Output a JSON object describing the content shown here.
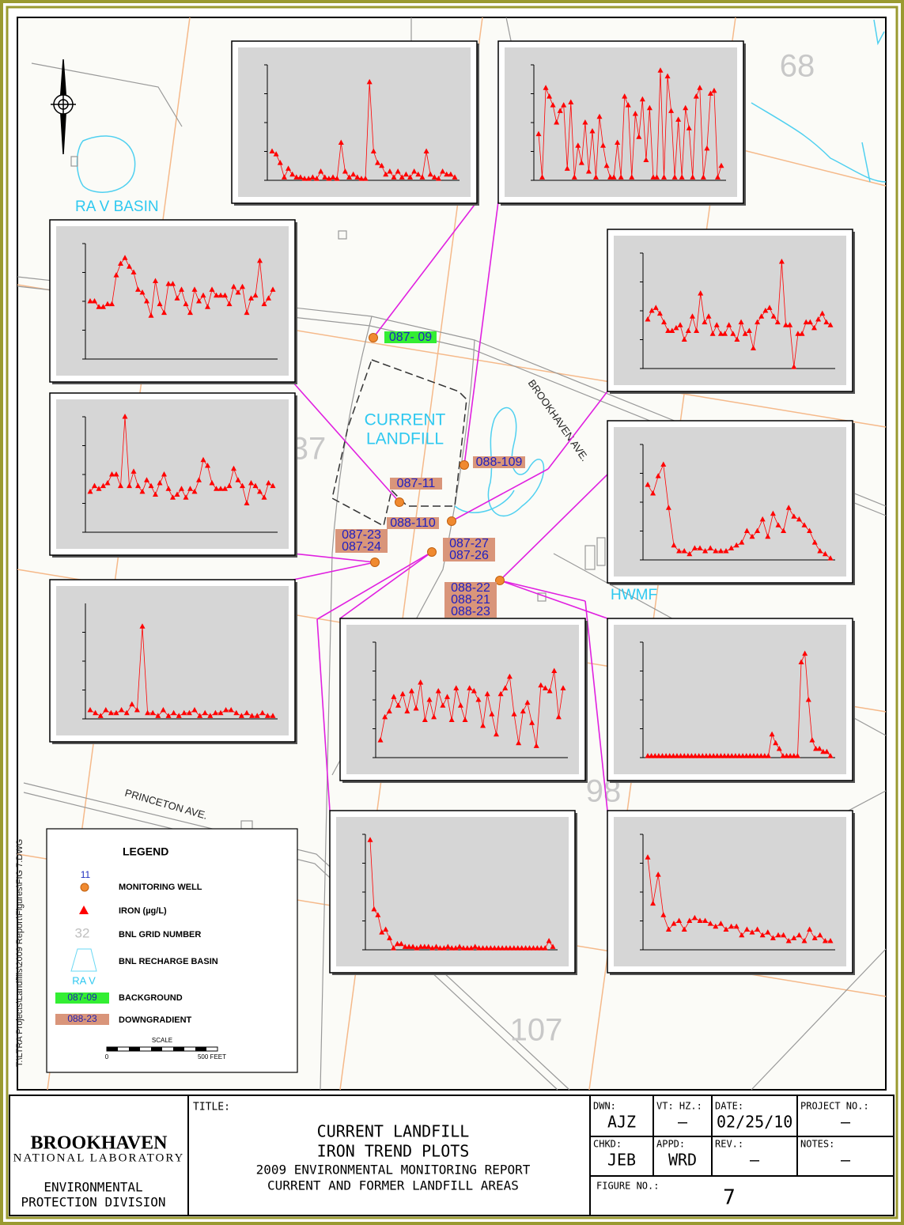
{
  "map": {
    "grid_numbers": [
      "68",
      "37",
      "98",
      "107"
    ],
    "ra_v_basin": "RA V BASIN",
    "landfill": [
      "CURRENT",
      "LANDFILL"
    ],
    "brookhaven_ave": "BROOKHAVEN AVE.",
    "princeton_ave": "PRINCETON AVE.",
    "hwmf": "HWMF",
    "file_path": "T:\\LTRA Projects\\Landfills\\2009 Report\\Figures\\FIG 7.DWG",
    "wells": [
      "087- 09",
      "088-109",
      "087-11",
      "088-110",
      "087-23",
      "087-24",
      "087-27",
      "087-26",
      "088-22",
      "088-21",
      "088-23"
    ]
  },
  "legend": {
    "title": "LEGEND",
    "well_number": "11",
    "monitoring_well": "MONITORING WELL",
    "iron": "IRON (µg/L)",
    "grid_number": "32",
    "bnl_grid_number": "BNL GRID NUMBER",
    "recharge_basin": "BNL RECHARGE BASIN",
    "basin_name": "RA V",
    "background_well": "087-09",
    "background": "BACKGROUND",
    "downgradient_well": "088-23",
    "downgradient": "DOWNGRADIENT",
    "scale": "SCALE",
    "scale_start": "0",
    "scale_end": "500 FEET"
  },
  "plots": [
    {
      "ylim": [
        0,
        4
      ],
      "yticks": [
        0,
        1,
        2,
        3,
        4
      ],
      "color": "#ff0000",
      "values": [
        1.0,
        0.9,
        0.6,
        0.1,
        0.4,
        0.2,
        0.1,
        0.1,
        0.05,
        0.05,
        0.1,
        0.05,
        0.3,
        0.1,
        0.05,
        0.1,
        0.05,
        1.3,
        0.3,
        0.1,
        0.2,
        0.1,
        0.05,
        0.05,
        3.4,
        1.0,
        0.6,
        0.5,
        0.2,
        0.3,
        0.1,
        0.3,
        0.1,
        0.2,
        0.1,
        0.3,
        0.2,
        0.1,
        1.0,
        0.2,
        0.1,
        0.05,
        0.3,
        0.2,
        0.2,
        0.1
      ]
    },
    {
      "ylim": [
        0,
        4
      ],
      "yticks": [
        0,
        1,
        2,
        3,
        4
      ],
      "color": "#ff0000",
      "values": [
        1.6,
        0.1,
        3.2,
        2.9,
        2.6,
        2.0,
        2.4,
        2.6,
        0.4,
        2.7,
        0.1,
        1.2,
        0.6,
        2.0,
        0.3,
        1.7,
        0.1,
        2.2,
        1.2,
        0.5,
        0.1,
        0.1,
        1.3,
        0.1,
        2.9,
        2.6,
        0.1,
        2.3,
        1.5,
        2.8,
        0.7,
        2.5,
        0.1,
        0.1,
        3.8,
        0.1,
        3.6,
        2.4,
        0.1,
        2.1,
        0.1,
        2.5,
        1.8,
        0.1,
        2.9,
        3.2,
        0.1,
        1.1,
        3.0,
        3.1,
        0.1,
        0.5
      ]
    },
    {
      "ylim": [
        0,
        4
      ],
      "yticks": [
        0,
        1,
        2,
        3,
        4
      ],
      "color": "#ff0000",
      "values": [
        2.0,
        2.0,
        1.8,
        1.8,
        1.9,
        1.9,
        2.9,
        3.3,
        3.5,
        3.2,
        3.0,
        2.4,
        2.3,
        2.0,
        1.5,
        2.7,
        1.9,
        1.6,
        2.6,
        2.6,
        2.1,
        2.4,
        1.9,
        1.6,
        2.4,
        2.0,
        2.2,
        1.8,
        2.4,
        2.2,
        2.2,
        2.2,
        1.9,
        2.5,
        2.3,
        2.5,
        1.6,
        2.1,
        2.2,
        3.4,
        1.9,
        2.1,
        2.4
      ]
    },
    {
      "ylim": [
        0,
        4
      ],
      "yticks": [
        0,
        1,
        2,
        3,
        4
      ],
      "color": "#ff0000",
      "values": [
        1.7,
        2.0,
        2.1,
        1.9,
        1.6,
        1.3,
        1.3,
        1.4,
        1.5,
        1.0,
        1.3,
        1.8,
        1.3,
        2.6,
        1.6,
        1.8,
        1.2,
        1.5,
        1.2,
        1.2,
        1.5,
        1.2,
        1.0,
        1.6,
        1.2,
        1.3,
        0.7,
        1.6,
        1.8,
        2.0,
        2.1,
        1.8,
        1.6,
        3.7,
        1.5,
        1.5,
        0.05,
        1.2,
        1.2,
        1.6,
        1.6,
        1.4,
        1.7,
        1.9,
        1.6,
        1.5
      ]
    },
    {
      "ylim": [
        0,
        4
      ],
      "yticks": [
        0,
        1,
        2,
        3,
        4
      ],
      "color": "#ff0000",
      "values": [
        1.4,
        1.6,
        1.5,
        1.6,
        1.7,
        2.0,
        2.0,
        1.6,
        4.0,
        1.6,
        2.1,
        1.6,
        1.4,
        1.8,
        1.6,
        1.3,
        1.7,
        2.0,
        1.5,
        1.2,
        1.3,
        1.5,
        1.2,
        1.5,
        1.4,
        1.8,
        2.5,
        2.3,
        1.7,
        1.5,
        1.5,
        1.5,
        1.6,
        2.2,
        1.8,
        1.6,
        1.0,
        1.7,
        1.6,
        1.4,
        1.2,
        1.7,
        1.6
      ]
    },
    {
      "ylim": [
        0,
        4
      ],
      "yticks": [
        0,
        1,
        2,
        3,
        4
      ],
      "color": "#ff0000",
      "values": [
        2.6,
        2.3,
        2.9,
        3.3,
        1.8,
        0.5,
        0.3,
        0.3,
        0.2,
        0.4,
        0.4,
        0.3,
        0.4,
        0.3,
        0.3,
        0.3,
        0.4,
        0.5,
        0.6,
        1.0,
        0.8,
        1.0,
        1.4,
        0.8,
        1.6,
        1.2,
        1.0,
        1.8,
        1.5,
        1.4,
        1.2,
        1.0,
        0.6,
        0.3,
        0.2,
        0.05
      ]
    },
    {
      "ylim": [
        0,
        4
      ],
      "yticks": [
        0,
        1,
        2,
        3
      ],
      "color": "#ff0000",
      "values": [
        0.3,
        0.2,
        0.1,
        0.3,
        0.2,
        0.2,
        0.3,
        0.2,
        0.5,
        0.3,
        3.2,
        0.2,
        0.2,
        0.1,
        0.3,
        0.1,
        0.2,
        0.1,
        0.2,
        0.2,
        0.3,
        0.1,
        0.2,
        0.1,
        0.2,
        0.2,
        0.3,
        0.3,
        0.2,
        0.1,
        0.2,
        0.1,
        0.1,
        0.2,
        0.1,
        0.1
      ]
    },
    {
      "ylim": [
        0,
        4
      ],
      "yticks": [
        0,
        1,
        2,
        3,
        4
      ],
      "color": "#ff0000",
      "values": [
        0.6,
        1.4,
        1.6,
        2.1,
        1.8,
        2.2,
        1.6,
        2.3,
        1.7,
        2.6,
        1.3,
        2.0,
        1.4,
        2.3,
        1.8,
        2.1,
        1.3,
        2.4,
        1.8,
        1.3,
        2.4,
        2.3,
        2.0,
        1.1,
        2.2,
        1.5,
        0.8,
        2.2,
        2.4,
        2.8,
        1.5,
        0.5,
        1.6,
        1.9,
        1.2,
        0.4,
        2.5,
        2.4,
        2.3,
        3.0,
        1.4,
        2.4
      ]
    },
    {
      "ylim": [
        0,
        4
      ],
      "yticks": [
        0,
        1,
        2,
        3,
        4
      ],
      "color": "#ff0000",
      "values": [
        0.05,
        0.05,
        0.05,
        0.05,
        0.05,
        0.05,
        0.05,
        0.05,
        0.05,
        0.05,
        0.05,
        0.05,
        0.05,
        0.05,
        0.05,
        0.05,
        0.05,
        0.05,
        0.05,
        0.05,
        0.05,
        0.05,
        0.05,
        0.05,
        0.05,
        0.05,
        0.05,
        0.05,
        0.05,
        0.05,
        0.05,
        0.05,
        0.05,
        0.05,
        0.8,
        0.5,
        0.3,
        0.05,
        0.05,
        0.05,
        0.05,
        0.05,
        3.3,
        3.6,
        2.0,
        0.6,
        0.3,
        0.3,
        0.2,
        0.2,
        0.05
      ]
    },
    {
      "ylim": [
        0,
        4
      ],
      "yticks": [
        0,
        1,
        2,
        3,
        4
      ],
      "color": "#ff0000",
      "values": [
        3.8,
        1.4,
        1.2,
        0.6,
        0.7,
        0.4,
        0.05,
        0.2,
        0.2,
        0.1,
        0.1,
        0.1,
        0.05,
        0.1,
        0.1,
        0.1,
        0.05,
        0.1,
        0.05,
        0.05,
        0.1,
        0.05,
        0.05,
        0.1,
        0.05,
        0.05,
        0.05,
        0.1,
        0.05,
        0.05,
        0.05,
        0.05,
        0.05,
        0.05,
        0.05,
        0.05,
        0.05,
        0.05,
        0.05,
        0.05,
        0.05,
        0.05,
        0.05,
        0.05,
        0.05,
        0.05,
        0.3,
        0.1
      ]
    },
    {
      "ylim": [
        0,
        4
      ],
      "yticks": [
        0,
        1,
        2,
        3,
        4
      ],
      "color": "#ff0000",
      "values": [
        3.2,
        1.6,
        2.6,
        1.2,
        0.7,
        0.9,
        1.0,
        0.7,
        1.0,
        1.1,
        1.0,
        1.0,
        0.9,
        0.8,
        0.9,
        0.7,
        0.8,
        0.8,
        0.5,
        0.7,
        0.6,
        0.7,
        0.5,
        0.6,
        0.4,
        0.5,
        0.5,
        0.3,
        0.4,
        0.5,
        0.3,
        0.7,
        0.4,
        0.5,
        0.3,
        0.3
      ]
    }
  ],
  "title_block": {
    "lab_name": "BROOKHAVEN",
    "lab_sub": "NATIONAL LABORATORY",
    "division": [
      "ENVIRONMENTAL",
      "PROTECTION DIVISION"
    ],
    "title_label": "TITLE:",
    "title": [
      "CURRENT LANDFILL",
      "IRON TREND PLOTS",
      "2009 ENVIRONMENTAL MONITORING REPORT",
      "CURRENT AND FORMER LANDFILL AREAS"
    ],
    "dwn_label": "DWN:",
    "dwn": "AJZ",
    "vthz_label": "VT: HZ.:",
    "vthz": "–",
    "date_label": "DATE:",
    "date": "02/25/10",
    "project_label": "PROJECT NO.:",
    "project": "–",
    "chkd_label": "CHKD:",
    "chkd": "JEB",
    "appd_label": "APPD:",
    "appd": "WRD",
    "rev_label": "REV.:",
    "rev": "–",
    "notes_label": "NOTES:",
    "notes": "–",
    "figure_label": "FIGURE NO.:",
    "figure": "7"
  }
}
